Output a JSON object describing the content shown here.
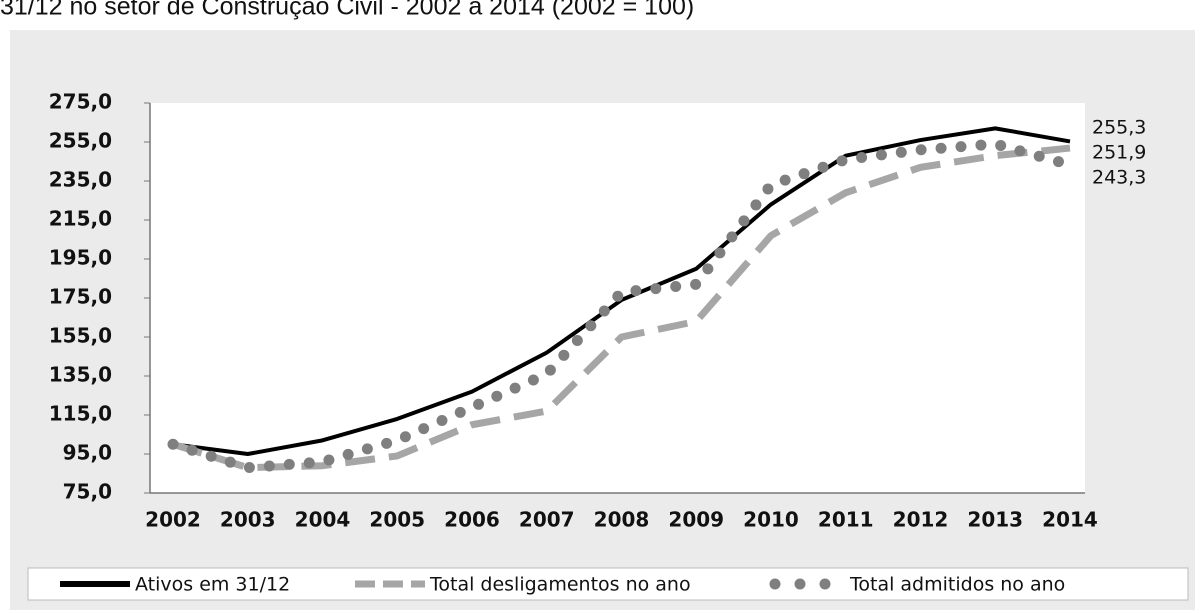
{
  "chart_data": {
    "type": "line",
    "title": "31/12 no setor de Construção Civil - 2002 a 2014 (2002 = 100)",
    "x": [
      "2002",
      "2003",
      "2004",
      "2005",
      "2006",
      "2007",
      "2008",
      "2009",
      "2010",
      "2011",
      "2012",
      "2013",
      "2014"
    ],
    "series": [
      {
        "name": "Ativos em 31/12",
        "color": "#000000",
        "style": "solid",
        "values": [
          100,
          95,
          102,
          113,
          127,
          147,
          174,
          190,
          223,
          248,
          256,
          262,
          255.3
        ],
        "value_labels": [
          null,
          null,
          null,
          null,
          null,
          null,
          null,
          null,
          null,
          null,
          null,
          null,
          "255,3"
        ]
      },
      {
        "name": "Total desligamentos no ano",
        "color": "#a6a6a6",
        "style": "dashed",
        "values": [
          100,
          88,
          89,
          94,
          110,
          117,
          155,
          163,
          207,
          229,
          242,
          248,
          251.9
        ],
        "value_labels": [
          null,
          null,
          null,
          null,
          null,
          null,
          null,
          null,
          null,
          null,
          null,
          null,
          "251,9"
        ]
      },
      {
        "name": "Total admitidos no ano",
        "color": "#7f7f7f",
        "style": "dotted",
        "values": [
          100,
          88,
          91,
          102,
          119,
          136,
          178,
          182,
          233,
          246,
          251,
          254,
          243.3
        ],
        "value_labels": [
          null,
          null,
          null,
          null,
          null,
          null,
          null,
          null,
          null,
          null,
          null,
          null,
          "243,3"
        ]
      }
    ],
    "ylim": [
      75,
      275
    ],
    "yticks": [
      {
        "value": 75,
        "label": "75,0"
      },
      {
        "value": 95,
        "label": "95,0"
      },
      {
        "value": 115,
        "label": "115,0"
      },
      {
        "value": 135,
        "label": "135,0"
      },
      {
        "value": 155,
        "label": "155,0"
      },
      {
        "value": 175,
        "label": "175,0"
      },
      {
        "value": 195,
        "label": "195,0"
      },
      {
        "value": 215,
        "label": "215,0"
      },
      {
        "value": 235,
        "label": "235,0"
      },
      {
        "value": 255,
        "label": "255,0"
      },
      {
        "value": 275,
        "label": "275,0"
      }
    ],
    "legend": "bottom"
  }
}
